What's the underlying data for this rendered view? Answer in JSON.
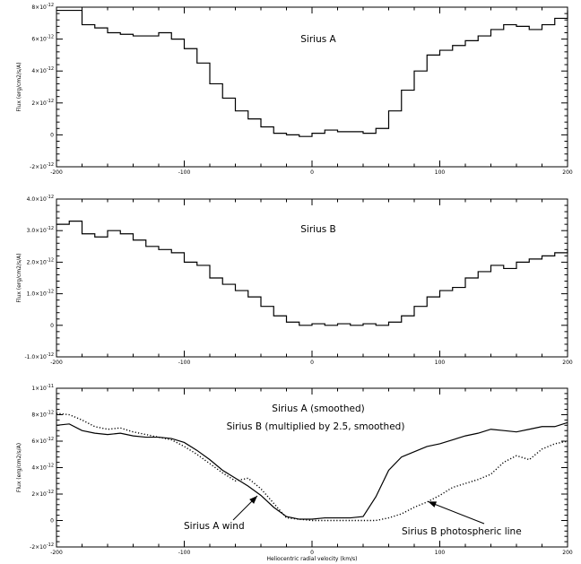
{
  "figure": {
    "xlabel": "Heliocentric radial velocity (km/s)"
  },
  "chart_data": [
    {
      "type": "line",
      "step": true,
      "title": "Sirius A",
      "ylabel": "Flux (erg/cm2/s/A)",
      "xlim": [
        -200,
        200
      ],
      "ylim": [
        -2e-12,
        8e-12
      ],
      "x_ticks": [
        -200,
        -100,
        0,
        100,
        200
      ],
      "x_tick_labels": [
        "-200",
        "-100",
        "0",
        "100",
        "200"
      ],
      "y_ticks": [
        -2e-12,
        0,
        2e-12,
        4e-12,
        6e-12,
        8e-12
      ],
      "y_tick_labels": [
        {
          "m": "-2×10",
          "e": "-12"
        },
        {
          "m": "0",
          "e": ""
        },
        {
          "m": "2×10",
          "e": "-12"
        },
        {
          "m": "4×10",
          "e": "-12"
        },
        {
          "m": "6×10",
          "e": "-12"
        },
        {
          "m": "8×10",
          "e": "-12"
        }
      ],
      "series": [
        {
          "style": "solid",
          "x": [
            -200,
            -180,
            -170,
            -160,
            -150,
            -140,
            -130,
            -120,
            -110,
            -100,
            -90,
            -80,
            -70,
            -60,
            -50,
            -40,
            -30,
            -20,
            -10,
            0,
            10,
            20,
            30,
            40,
            50,
            60,
            70,
            80,
            90,
            100,
            110,
            120,
            130,
            140,
            150,
            160,
            170,
            180,
            190,
            200
          ],
          "y": [
            7.8e-12,
            6.9e-12,
            6.7e-12,
            6.4e-12,
            6.3e-12,
            6.2e-12,
            6.2e-12,
            6.4e-12,
            6e-12,
            5.4e-12,
            4.5e-12,
            3.2e-12,
            2.3e-12,
            1.5e-12,
            1e-12,
            5e-13,
            1e-13,
            0.0,
            -1e-13,
            1e-13,
            3e-13,
            2e-13,
            2e-13,
            1e-13,
            4e-13,
            1.5e-12,
            2.8e-12,
            4e-12,
            5e-12,
            5.3e-12,
            5.6e-12,
            5.9e-12,
            6.2e-12,
            6.6e-12,
            6.9e-12,
            6.8e-12,
            6.6e-12,
            6.9e-12,
            7.3e-12,
            7.8e-12
          ]
        }
      ]
    },
    {
      "type": "line",
      "step": true,
      "title": "Sirius B",
      "ylabel": "Flux (erg/cm2/s/A)",
      "xlim": [
        -200,
        200
      ],
      "ylim": [
        -1e-12,
        4e-12
      ],
      "x_ticks": [
        -200,
        -100,
        0,
        100,
        200
      ],
      "x_tick_labels": [
        "-200",
        "-100",
        "0",
        "100",
        "200"
      ],
      "y_ticks": [
        -1e-12,
        0,
        1e-12,
        2e-12,
        3e-12,
        4e-12
      ],
      "y_tick_labels": [
        {
          "m": "-1.0×10",
          "e": "-12"
        },
        {
          "m": "0",
          "e": ""
        },
        {
          "m": "1.0×10",
          "e": "-12"
        },
        {
          "m": "2.0×10",
          "e": "-12"
        },
        {
          "m": "3.0×10",
          "e": "-12"
        },
        {
          "m": "4.0×10",
          "e": "-12"
        }
      ],
      "series": [
        {
          "style": "solid",
          "x": [
            -200,
            -190,
            -180,
            -170,
            -160,
            -150,
            -140,
            -130,
            -120,
            -110,
            -100,
            -90,
            -80,
            -70,
            -60,
            -50,
            -40,
            -30,
            -20,
            -10,
            0,
            10,
            20,
            30,
            40,
            50,
            60,
            70,
            80,
            90,
            100,
            110,
            120,
            130,
            140,
            150,
            160,
            170,
            180,
            190,
            200
          ],
          "y": [
            3.2e-12,
            3.3e-12,
            2.9e-12,
            2.8e-12,
            3e-12,
            2.9e-12,
            2.7e-12,
            2.5e-12,
            2.4e-12,
            2.3e-12,
            2e-12,
            1.9e-12,
            1.5e-12,
            1.3e-12,
            1.1e-12,
            9e-13,
            6e-13,
            3e-13,
            1e-13,
            0.0,
            5e-14,
            0.0,
            5e-14,
            0.0,
            5e-14,
            0.0,
            1e-13,
            3e-13,
            6e-13,
            9e-13,
            1.1e-12,
            1.2e-12,
            1.5e-12,
            1.7e-12,
            1.9e-12,
            1.8e-12,
            2e-12,
            2.1e-12,
            2.2e-12,
            2.3e-12,
            2.4e-12
          ]
        }
      ]
    },
    {
      "type": "line",
      "ylabel": "Flux (erg/cm2/s/A)",
      "xlabel": "Heliocentric radial velocity (km/s)",
      "xlim": [
        -200,
        200
      ],
      "ylim": [
        -2e-12,
        1e-11
      ],
      "x_ticks": [
        -200,
        -100,
        0,
        100,
        200
      ],
      "x_tick_labels": [
        "-200",
        "-100",
        "0",
        "100",
        "200"
      ],
      "y_ticks": [
        -2e-12,
        0,
        2e-12,
        4e-12,
        6e-12,
        8e-12,
        1e-11
      ],
      "y_tick_labels": [
        {
          "m": "-2×10",
          "e": "-12"
        },
        {
          "m": "0",
          "e": ""
        },
        {
          "m": "2×10",
          "e": "-12"
        },
        {
          "m": "4×10",
          "e": "-12"
        },
        {
          "m": "6×10",
          "e": "-12"
        },
        {
          "m": "8×10",
          "e": "-12"
        },
        {
          "m": "1×10",
          "e": "-11"
        }
      ],
      "legend_lines": [
        "Sirius A (smoothed)",
        "Sirius B (multiplied by 2.5, smoothed)"
      ],
      "series": [
        {
          "name": "Sirius A (smoothed)",
          "style": "solid",
          "x": [
            -200,
            -190,
            -180,
            -170,
            -160,
            -150,
            -140,
            -130,
            -120,
            -110,
            -100,
            -90,
            -80,
            -70,
            -60,
            -50,
            -40,
            -30,
            -20,
            -10,
            0,
            10,
            20,
            30,
            40,
            50,
            60,
            70,
            80,
            90,
            100,
            110,
            120,
            130,
            140,
            150,
            160,
            170,
            180,
            190,
            200
          ],
          "y": [
            7.2e-12,
            7.3e-12,
            6.8e-12,
            6.6e-12,
            6.5e-12,
            6.6e-12,
            6.4e-12,
            6.3e-12,
            6.3e-12,
            6.2e-12,
            5.9e-12,
            5.3e-12,
            4.6e-12,
            3.8e-12,
            3.2e-12,
            2.6e-12,
            1.9e-12,
            1e-12,
            3e-13,
            1e-13,
            1e-13,
            2e-13,
            2e-13,
            2e-13,
            3e-13,
            1.8e-12,
            3.8e-12,
            4.8e-12,
            5.2e-12,
            5.6e-12,
            5.8e-12,
            6.1e-12,
            6.4e-12,
            6.6e-12,
            6.9e-12,
            6.8e-12,
            6.7e-12,
            6.9e-12,
            7.1e-12,
            7.1e-12,
            7.4e-12
          ]
        },
        {
          "name": "Sirius B (multiplied by 2.5, smoothed)",
          "style": "dotted",
          "x": [
            -200,
            -190,
            -180,
            -170,
            -160,
            -150,
            -140,
            -130,
            -120,
            -110,
            -100,
            -90,
            -80,
            -70,
            -60,
            -50,
            -40,
            -30,
            -20,
            -10,
            0,
            10,
            20,
            30,
            40,
            50,
            60,
            70,
            80,
            90,
            100,
            110,
            120,
            130,
            140,
            150,
            160,
            170,
            180,
            190,
            200
          ],
          "y": [
            8.1e-12,
            8e-12,
            7.6e-12,
            7.1e-12,
            6.9e-12,
            7e-12,
            6.7e-12,
            6.5e-12,
            6.3e-12,
            6.1e-12,
            5.6e-12,
            5e-12,
            4.3e-12,
            3.6e-12,
            3e-12,
            3.2e-12,
            2.4e-12,
            1.3e-12,
            2e-13,
            1e-13,
            0.0,
            0.0,
            0.0,
            0.0,
            0.0,
            0.0,
            2e-13,
            5e-13,
            1e-12,
            1.4e-12,
            1.9e-12,
            2.5e-12,
            2.8e-12,
            3.1e-12,
            3.5e-12,
            4.4e-12,
            4.9e-12,
            4.6e-12,
            5.4e-12,
            5.8e-12,
            6e-12
          ]
        }
      ],
      "annotations": [
        {
          "text": "Sirius A wind",
          "x": -40,
          "y": 2e-12
        },
        {
          "text": "Sirius B photospheric line",
          "x": 88,
          "y": 1.5e-12
        }
      ]
    }
  ]
}
